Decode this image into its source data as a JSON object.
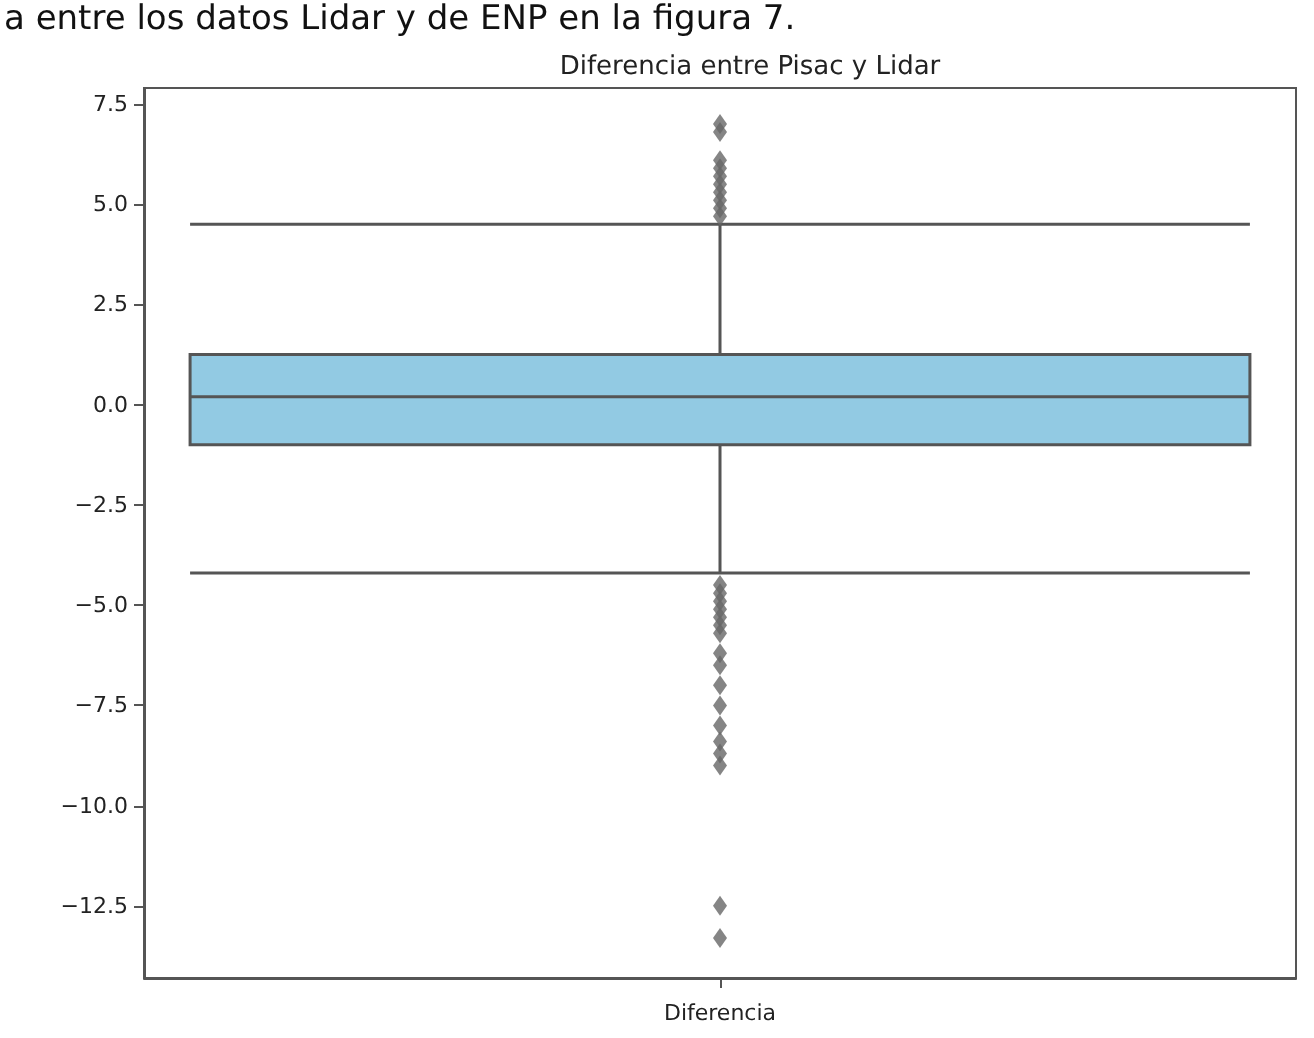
{
  "chart_data": {
    "type": "box",
    "title": "Diferencia entre Pisac y Lidar",
    "annotations": [
      "a entre los datos Lidar y de ENP en la figura 7."
    ],
    "categories": [
      "Diferencia"
    ],
    "boxes": [
      {
        "low": -4.2,
        "q1": -1.0,
        "median": 0.2,
        "q3": 1.25,
        "high": 4.5,
        "outliers": [
          4.7,
          4.9,
          5.1,
          5.3,
          5.5,
          5.7,
          5.9,
          6.1,
          6.8,
          7.0,
          -4.5,
          -4.7,
          -4.9,
          -5.1,
          -5.3,
          -5.5,
          -5.7,
          -6.2,
          -6.5,
          -7.0,
          -7.5,
          -8.0,
          -8.4,
          -8.7,
          -9.0,
          -12.5,
          -13.3
        ]
      }
    ],
    "color": "#92cae3",
    "ylim": [
      -14.3,
      7.9
    ],
    "yticks": [
      {
        "value": -12.5,
        "label": "−12.5"
      },
      {
        "value": -10,
        "label": "−10.0"
      },
      {
        "value": -7.5,
        "label": "−7.5"
      },
      {
        "value": -5,
        "label": "−5.0"
      },
      {
        "value": -2.5,
        "label": "−2.5"
      },
      {
        "value": 0,
        "label": "0.0"
      },
      {
        "value": 2.5,
        "label": "2.5"
      },
      {
        "value": 5,
        "label": "5.0"
      },
      {
        "value": 7.5,
        "label": "7.5"
      }
    ],
    "grid": false,
    "marker": "diamond"
  }
}
